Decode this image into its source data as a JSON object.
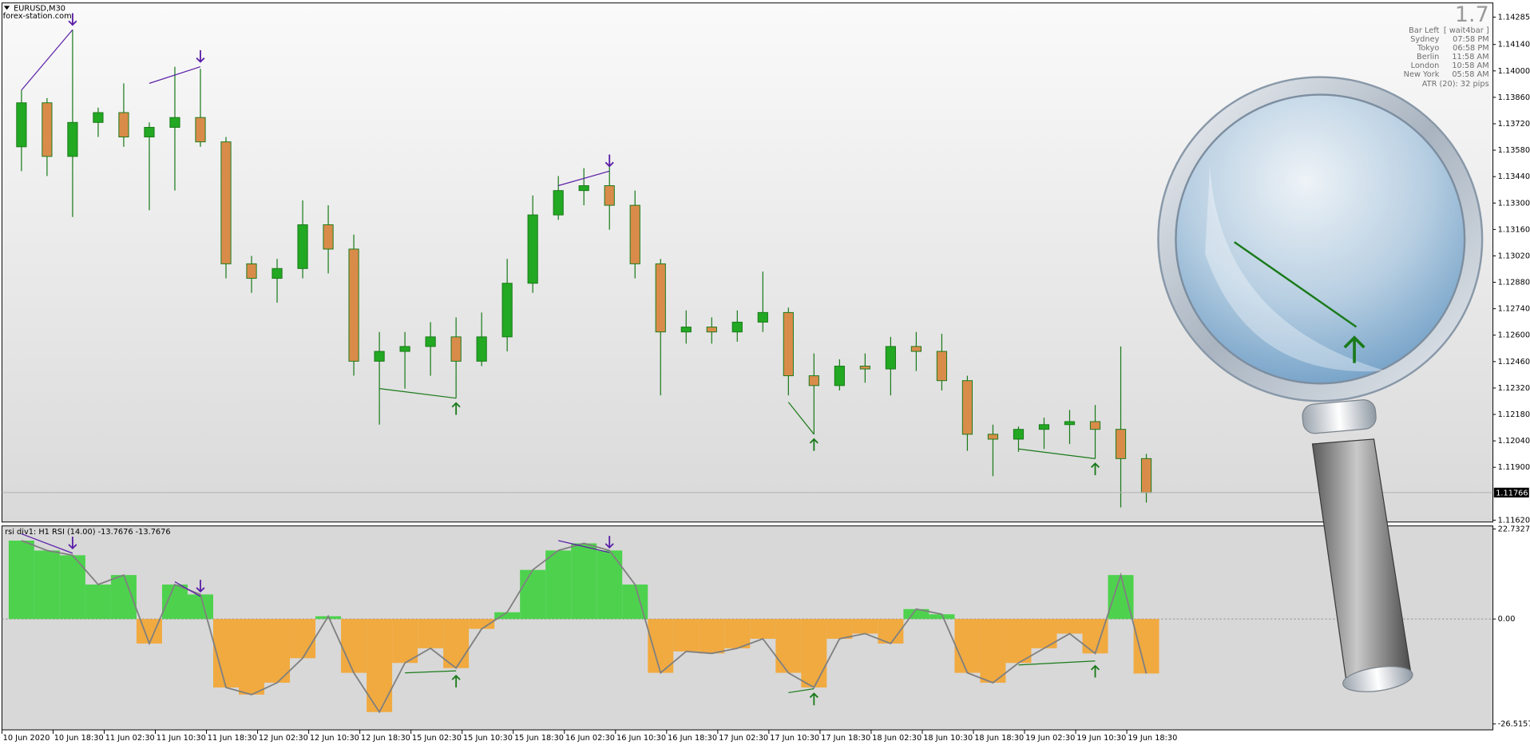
{
  "chart_data": [
    {
      "type": "candlestick",
      "title": "EURUSD,M30",
      "subtitle": "forex-station.com",
      "categories": [
        "10 Jun 2020",
        null,
        "10 Jun 18:30",
        null,
        "11 Jun 02:30",
        null,
        "11 Jun 10:30",
        null,
        "11 Jun 18:30",
        null,
        "12 Jun 02:30",
        null,
        "12 Jun 10:30",
        null,
        "12 Jun 18:30",
        null,
        "15 Jun 02:30",
        null,
        "15 Jun 10:30",
        null,
        "15 Jun 18:30",
        null,
        "16 Jun 02:30",
        null,
        "16 Jun 10:30",
        null,
        "16 Jun 18:30",
        null,
        "17 Jun 02:30",
        null,
        "17 Jun 10:30",
        null,
        "17 Jun 18:30",
        null,
        "18 Jun 02:30",
        null,
        "18 Jun 10:30",
        null,
        "18 Jun 18:30",
        null,
        "19 Jun 02:30",
        null,
        "19 Jun 10:30",
        null,
        "19 Jun 18:30"
      ],
      "open": [
        1.13598,
        1.13831,
        1.13547,
        1.13727,
        1.13779,
        1.1365,
        1.13701,
        1.13753,
        1.13624,
        1.12978,
        1.12901,
        1.12953,
        1.13185,
        1.13056,
        1.12462,
        1.12514,
        1.1254,
        1.12591,
        1.12462,
        1.12591,
        1.12875,
        1.13237,
        1.13366,
        1.13392,
        1.13288,
        1.12978,
        1.12617,
        1.12643,
        1.12617,
        1.12669,
        1.1272,
        1.12385,
        1.12333,
        1.12436,
        1.12421,
        1.1254,
        1.12514,
        1.12359,
        1.12075,
        1.12049,
        1.12101,
        1.12126,
        1.12142,
        1.12101,
        1.11946
      ],
      "high": [
        1.13898,
        1.13856,
        1.14218,
        1.13805,
        1.13934,
        1.13727,
        1.14022,
        1.14011,
        1.1365,
        1.1302,
        1.13004,
        1.13314,
        1.13288,
        1.13133,
        1.12617,
        1.12617,
        1.12669,
        1.12694,
        1.1272,
        1.13004,
        1.1334,
        1.13443,
        1.13485,
        1.13505,
        1.13366,
        1.13004,
        1.12731,
        1.12694,
        1.12731,
        1.12937,
        1.12746,
        1.12503,
        1.12472,
        1.12503,
        1.12591,
        1.12617,
        1.12607,
        1.12385,
        1.12126,
        1.12116,
        1.12163,
        1.12204,
        1.1223,
        1.1254,
        1.11971
      ],
      "low": [
        1.13469,
        1.13443,
        1.13226,
        1.1365,
        1.13598,
        1.13262,
        1.13366,
        1.13598,
        1.12901,
        1.12824,
        1.12772,
        1.12901,
        1.12927,
        1.12385,
        1.12126,
        1.12317,
        1.12385,
        1.12266,
        1.12436,
        1.12514,
        1.12824,
        1.13211,
        1.13288,
        1.13159,
        1.12901,
        1.12281,
        1.12555,
        1.12555,
        1.12565,
        1.12617,
        1.12281,
        1.12075,
        1.12307,
        1.12348,
        1.12281,
        1.1241,
        1.12307,
        1.11987,
        1.11853,
        1.11982,
        1.11997,
        1.12023,
        1.11946,
        1.11687,
        1.11713
      ],
      "close": [
        1.13831,
        1.13547,
        1.13727,
        1.13779,
        1.1365,
        1.13701,
        1.13753,
        1.13624,
        1.12978,
        1.12901,
        1.12953,
        1.13185,
        1.13056,
        1.12462,
        1.12514,
        1.1254,
        1.12591,
        1.12462,
        1.12591,
        1.12875,
        1.13237,
        1.13366,
        1.13392,
        1.13288,
        1.12978,
        1.12617,
        1.12643,
        1.12617,
        1.12669,
        1.1272,
        1.12385,
        1.12333,
        1.12436,
        1.12421,
        1.1254,
        1.12514,
        1.12359,
        1.12075,
        1.12049,
        1.12101,
        1.12126,
        1.12142,
        1.12101,
        1.11946,
        1.11766
      ],
      "up_color": "#22a822",
      "down_color": "#d98c4a",
      "wick_color": "#1a7a1a",
      "ylim": [
        1.1161,
        1.1436
      ],
      "yticks": [
        1.14285,
        {
          "value": 1.1414,
          "label": "1.14140"
        },
        {
          "value": 1.14,
          "label": "1.14000"
        },
        {
          "value": 1.1386,
          "label": "1.13860"
        },
        {
          "value": 1.1372,
          "label": "1.13720"
        },
        {
          "value": 1.1358,
          "label": "1.13580"
        },
        {
          "value": 1.1344,
          "label": "1.13440"
        },
        {
          "value": 1.133,
          "label": "1.13300"
        },
        {
          "value": 1.1316,
          "label": "1.13160"
        },
        {
          "value": 1.1302,
          "label": "1.13020"
        },
        {
          "value": 1.1288,
          "label": "1.12880"
        },
        {
          "value": 1.1274,
          "label": "1.12740"
        },
        {
          "value": 1.126,
          "label": "1.12600"
        },
        {
          "value": 1.1246,
          "label": "1.12460"
        },
        {
          "value": 1.1232,
          "label": "1.12320"
        },
        {
          "value": 1.1218,
          "label": "1.12180"
        },
        {
          "value": 1.1204,
          "label": "1.12040"
        },
        {
          "value": 1.119,
          "label": "1.11900"
        },
        {
          "value": 1.1162,
          "label": "1.11620"
        }
      ],
      "current_price": 1.11766,
      "divergences": [
        {
          "from": 0,
          "from_value": 1.13898,
          "to": 2,
          "to_value": 1.14218,
          "color": "#5b1fa8",
          "arrow": "down"
        },
        {
          "from": 5,
          "from_value": 1.13934,
          "to": 7,
          "to_value": 1.14022,
          "color": "#5b1fa8",
          "arrow": "down"
        },
        {
          "from": 21,
          "from_value": 1.13392,
          "to": 23,
          "to_value": 1.13469,
          "color": "#5b1fa8",
          "arrow": "down"
        },
        {
          "from": 14,
          "from_value": 1.12317,
          "to": 17,
          "to_value": 1.12266,
          "color": "#1a7a1a",
          "arrow": "up"
        },
        {
          "from": 30,
          "from_value": 1.12245,
          "to": 31,
          "to_value": 1.12075,
          "color": "#1a7a1a",
          "arrow": "up"
        },
        {
          "from": 39,
          "from_value": 1.11997,
          "to": 42,
          "to_value": 1.11946,
          "color": "#1a7a1a",
          "arrow": "up"
        }
      ]
    },
    {
      "type": "bar",
      "title": "rsi div1: H1 RSI (14.00) -13.7676 -13.7676",
      "values": [
        19.8,
        17.3,
        16.1,
        8.7,
        11.1,
        -6.2,
        8.7,
        6.2,
        -17.3,
        -19.1,
        -16.1,
        -9.9,
        0.7,
        -13.6,
        -23.5,
        -11.1,
        -7.4,
        -12.4,
        -2.5,
        1.7,
        12.4,
        17.3,
        19.1,
        17.3,
        8.7,
        -13.6,
        -8.2,
        -8.7,
        -7.4,
        -5.0,
        -13.6,
        -17.3,
        -5.0,
        -3.7,
        -6.2,
        2.5,
        1.2,
        -13.6,
        -16.1,
        -11.1,
        -7.4,
        -3.7,
        -8.7,
        11.1,
        -13.7676
      ],
      "positive_color": "#3fd23f",
      "negative_color": "#f4a530",
      "line_color": "#808080",
      "ylim": [
        -28,
        23.5
      ],
      "yticks": [
        22.7327,
        {
          "value": 0,
          "label": "0.00"
        },
        -26.5157
      ],
      "levels": [
        0
      ],
      "divergences": [
        {
          "from": 0,
          "from_value": 21.5,
          "to": 2,
          "to_value": 16.6,
          "color": "#5b1fa8",
          "arrow": "down"
        },
        {
          "from": 6,
          "from_value": 9.4,
          "to": 7,
          "to_value": 5.7,
          "color": "#5b1fa8",
          "arrow": "down"
        },
        {
          "from": 21,
          "from_value": 19.8,
          "to": 23,
          "to_value": 16.8,
          "color": "#5b1fa8",
          "arrow": "down"
        },
        {
          "from": 15,
          "from_value": -13.6,
          "to": 17,
          "to_value": -13.1,
          "color": "#1a7a1a",
          "arrow": "up"
        },
        {
          "from": 30,
          "from_value": -18.6,
          "to": 31,
          "to_value": -17.6,
          "color": "#1a7a1a",
          "arrow": "up"
        },
        {
          "from": 39,
          "from_value": -11.6,
          "to": 42,
          "to_value": -10.6,
          "color": "#1a7a1a",
          "arrow": "up"
        }
      ]
    }
  ],
  "info_panel": {
    "value": 1.7,
    "rows": [
      [
        "Bar Left",
        "[ wait4bar ]"
      ],
      [
        "Sydney",
        "07:58 PM"
      ],
      [
        "Tokyo",
        "06:58 PM"
      ],
      [
        "Berlin",
        "11:58 AM"
      ],
      [
        "London",
        "10:58 AM"
      ],
      [
        "New York",
        "05:58 AM"
      ]
    ],
    "atr": "ATR (20): 32 pips"
  }
}
